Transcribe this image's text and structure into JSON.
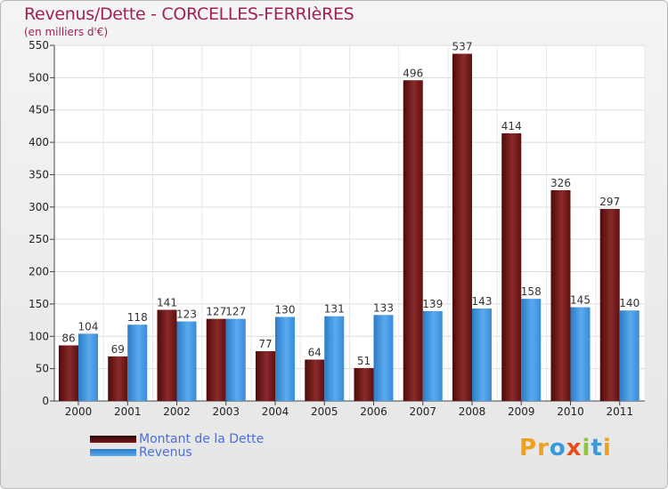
{
  "header": {
    "title": "Revenus/Dette - CORCELLES-FERRIèRES",
    "subtitle": "(en milliers d'€)"
  },
  "legend": {
    "debt_label": "Montant de la Dette",
    "revenue_label": "Revenus"
  },
  "logo": {
    "text": "Proxiti"
  },
  "colors": {
    "debt": "#7a1a1a",
    "revenue": "#3d8fd6",
    "title": "#a0205a",
    "legend_text": "#4a6fd6"
  },
  "chart_data": {
    "type": "bar",
    "title": "Revenus/Dette - CORCELLES-FERRIèRES",
    "ylabel": "(en milliers d'€)",
    "xlabel": "",
    "categories": [
      "2000",
      "2001",
      "2002",
      "2003",
      "2004",
      "2005",
      "2006",
      "2007",
      "2008",
      "2009",
      "2010",
      "2011"
    ],
    "series": [
      {
        "name": "Montant de la Dette",
        "values": [
          86,
          69,
          141,
          127,
          77,
          64,
          51,
          496,
          537,
          414,
          326,
          297
        ]
      },
      {
        "name": "Revenus",
        "values": [
          104,
          118,
          123,
          127,
          130,
          131,
          133,
          139,
          143,
          158,
          145,
          140
        ]
      }
    ],
    "ylim": [
      0,
      550
    ],
    "yticks": [
      0,
      50,
      100,
      150,
      200,
      250,
      300,
      350,
      400,
      450,
      500,
      550
    ],
    "grid": true,
    "legend_position": "bottom-left"
  }
}
